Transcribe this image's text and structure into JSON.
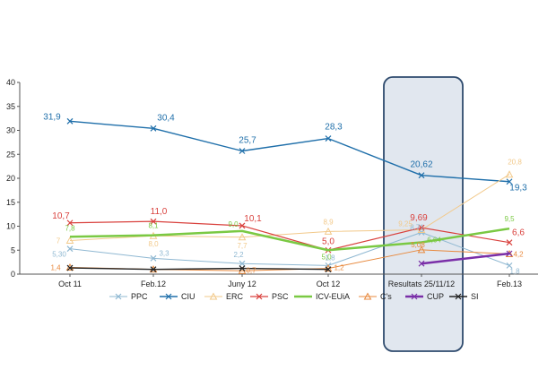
{
  "chart_data": {
    "type": "line",
    "categories": [
      "Oct 11",
      "Feb.12",
      "Juny 12",
      "Oct 12",
      "Resultats 25/11/12",
      "Feb.13"
    ],
    "ylim": [
      0,
      40
    ],
    "yticks": [
      0,
      5,
      10,
      15,
      20,
      25,
      30,
      35,
      40
    ],
    "highlight": {
      "category_index": 4,
      "style": "rounded-rect",
      "fill": "#e1e7ef",
      "stroke": "#2f4b6e"
    },
    "legend_position": "bottom",
    "series": [
      {
        "name": "PPC",
        "color": "#8fb8d2",
        "marker": "x",
        "width": 1,
        "values": [
          5.3,
          3.3,
          2.2,
          1.8,
          8.71,
          1.8
        ],
        "labels": [
          "5,30",
          "3,3",
          "2,2",
          "1,8",
          "8,71",
          "1,8"
        ],
        "label_size": "small"
      },
      {
        "name": "CIU",
        "color": "#1f6faa",
        "marker": "x",
        "width": 1.4,
        "values": [
          31.9,
          30.4,
          25.7,
          28.3,
          20.62,
          19.3
        ],
        "labels": [
          "31,9",
          "30,4",
          "25,7",
          "28,3",
          "20,62",
          "19,3"
        ],
        "label_size": "big"
      },
      {
        "name": "ERC",
        "color": "#f2c98a",
        "marker": "triangle",
        "width": 1,
        "values": [
          7.0,
          8.0,
          7.7,
          8.9,
          9.25,
          20.8
        ],
        "labels": [
          "7",
          "8,0",
          "7,7",
          "8,9",
          "9,25",
          "20,8"
        ],
        "label_size": "small"
      },
      {
        "name": "PSC",
        "color": "#d9413d",
        "marker": "x",
        "width": 1.2,
        "values": [
          10.7,
          11.0,
          10.1,
          5.0,
          9.69,
          6.6
        ],
        "labels": [
          "10,7",
          "11,0",
          "10,1",
          "5,0",
          "9,69",
          "6,6"
        ],
        "label_size": "big"
      },
      {
        "name": "ICV-EUiA",
        "color": "#7ac943",
        "marker": "none",
        "width": 2.5,
        "values": [
          7.8,
          8.1,
          9.0,
          5.0,
          6.64,
          9.5
        ],
        "labels": [
          "7,8",
          "8,1",
          "9,0",
          "5,0",
          "6,64",
          "9,5"
        ],
        "label_size": "small"
      },
      {
        "name": "C's",
        "color": "#e8893d",
        "marker": "triangle",
        "width": 1,
        "values": [
          1.4,
          1.0,
          0.7,
          1.2,
          5.08,
          4.2
        ],
        "labels": [
          "1,4",
          "",
          "0,7",
          "1,2",
          "5,08",
          "4,2"
        ],
        "label_size": "small"
      },
      {
        "name": "CUP",
        "color": "#7a2fa8",
        "marker": "x",
        "width": 2.5,
        "values": [
          null,
          null,
          null,
          null,
          2.2,
          4.3
        ],
        "labels": [
          "",
          "",
          "",
          "",
          "",
          ""
        ],
        "label_size": "small"
      },
      {
        "name": "SI",
        "color": "#222222",
        "marker": "x",
        "width": 1.4,
        "values": [
          1.3,
          1.0,
          1.2,
          1.0,
          null,
          null
        ],
        "labels": [
          "",
          "",
          "",
          "",
          "",
          ""
        ],
        "label_size": "small"
      }
    ]
  }
}
